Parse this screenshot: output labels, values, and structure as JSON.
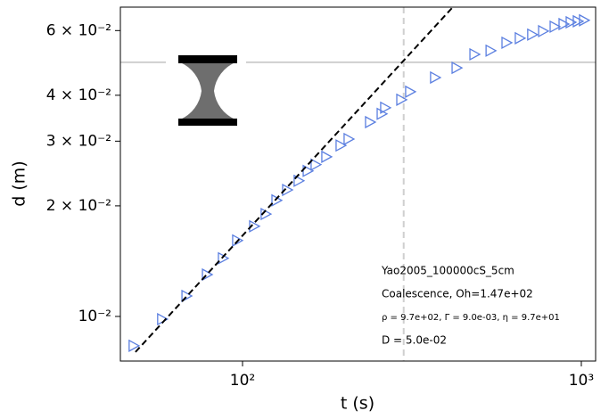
{
  "chart_data": {
    "type": "scatter",
    "xlabel": "t (s)",
    "ylabel": "d (m)",
    "xscale": "log",
    "yscale": "log",
    "xlim": [
      43.6,
      1102
    ],
    "ylim": [
      0.00756,
      0.0695
    ],
    "xticks": [
      {
        "value": 100,
        "label": "10²"
      },
      {
        "value": 1000,
        "label": "10³"
      }
    ],
    "yticks": [
      {
        "value": 0.01,
        "label": "10⁻²"
      },
      {
        "value": 0.02,
        "label": "2 × 10⁻²"
      },
      {
        "value": 0.03,
        "label": "3 × 10⁻²"
      },
      {
        "value": 0.04,
        "label": "4 × 10⁻²"
      },
      {
        "value": 0.06,
        "label": "6 × 10⁻²"
      }
    ],
    "color": "#5b7fe0",
    "x": [
      47.7,
      57.9,
      68.3,
      78.5,
      87.5,
      96.4,
      108.2,
      117.0,
      125.9,
      135.4,
      146.4,
      155.7,
      164.3,
      176.7,
      194.7,
      205.6,
      237.8,
      257.4,
      263.6,
      294.1,
      312.3,
      370.0,
      428.3,
      483.5,
      539.5,
      601.2,
      658,
      716,
      771,
      834,
      886,
      930,
      976,
      1018
    ],
    "y": [
      0.00832,
      0.00983,
      0.01137,
      0.013,
      0.0144,
      0.0161,
      0.0176,
      0.019,
      0.0207,
      0.0221,
      0.0234,
      0.0249,
      0.0259,
      0.0272,
      0.0292,
      0.0304,
      0.0338,
      0.0356,
      0.037,
      0.0389,
      0.0409,
      0.0447,
      0.0475,
      0.0517,
      0.0529,
      0.0556,
      0.0572,
      0.0585,
      0.0598,
      0.0615,
      0.0625,
      0.0632,
      0.0636,
      0.064
    ],
    "fit_line": {
      "x": [
        48.3,
        417.5
      ],
      "y": [
        0.008,
        0.0695
      ]
    },
    "vline_x": 299,
    "hline_y": 0.0492,
    "annotations": [
      "Yao2005_100000cS_5cm",
      "Coalescence, Oh=1.47e+02",
      "ρ = 9.7e+02, Γ = 9.0e-03, η = 9.7e+01",
      "D = 5.0e-02"
    ]
  }
}
